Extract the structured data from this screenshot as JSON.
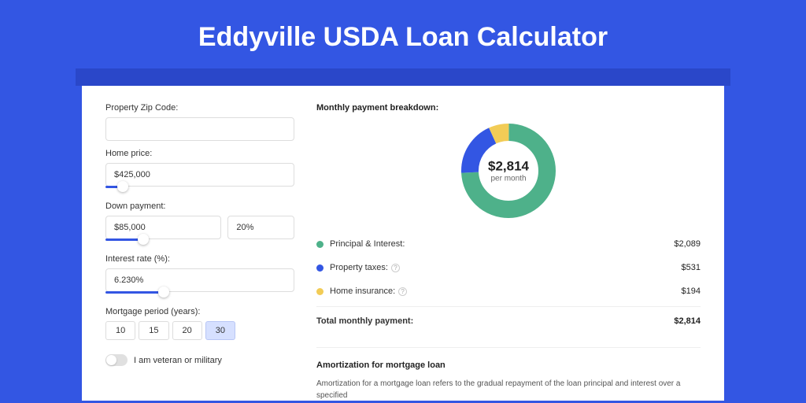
{
  "title": "Eddyville USDA Loan Calculator",
  "colors": {
    "page_bg": "#3356e3",
    "shadow_bar": "#2a47c9",
    "card_bg": "#ffffff"
  },
  "form": {
    "zip": {
      "label": "Property Zip Code:",
      "value": ""
    },
    "home_price": {
      "label": "Home price:",
      "value": "$425,000",
      "slider_pct": 9
    },
    "down_payment": {
      "label": "Down payment:",
      "value": "$85,000",
      "pct": "20%",
      "slider_pct": 20
    },
    "interest": {
      "label": "Interest rate (%):",
      "value": "6.230%",
      "slider_pct": 31
    },
    "period": {
      "label": "Mortgage period (years):",
      "options": [
        "10",
        "15",
        "20",
        "30"
      ],
      "selected": "30"
    },
    "veteran": {
      "label": "I am veteran or military",
      "on": false
    }
  },
  "breakdown": {
    "title": "Monthly payment breakdown:",
    "center_value": "$2,814",
    "center_label": "per month",
    "donut": {
      "size": 120,
      "thickness": 22,
      "slices": [
        {
          "key": "pi",
          "color": "#4eb18a",
          "pct": 74.2
        },
        {
          "key": "tax",
          "color": "#3356e3",
          "pct": 18.9
        },
        {
          "key": "ins",
          "color": "#f2cc56",
          "pct": 6.9
        }
      ]
    },
    "items": [
      {
        "dot": "#4eb18a",
        "label": "Principal & Interest:",
        "value": "$2,089",
        "info": false
      },
      {
        "dot": "#3356e3",
        "label": "Property taxes:",
        "value": "$531",
        "info": true
      },
      {
        "dot": "#f2cc56",
        "label": "Home insurance:",
        "value": "$194",
        "info": true
      }
    ],
    "total": {
      "label": "Total monthly payment:",
      "value": "$2,814"
    }
  },
  "amortization": {
    "title": "Amortization for mortgage loan",
    "text": "Amortization for a mortgage loan refers to the gradual repayment of the loan principal and interest over a specified"
  }
}
